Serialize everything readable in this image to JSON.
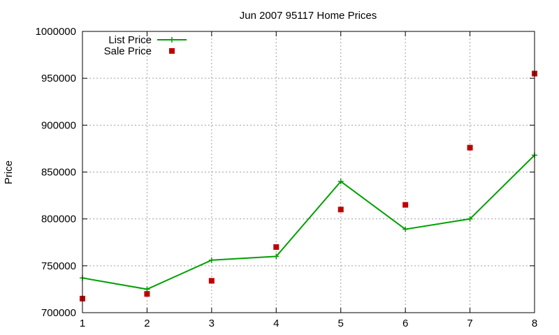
{
  "chart_data": {
    "type": "line",
    "title": "Jun 2007 95117 Home Prices",
    "xlabel": "",
    "ylabel": "Price",
    "xlim": [
      1,
      8
    ],
    "ylim": [
      700000,
      1000000
    ],
    "x_ticks": [
      "1",
      "2",
      "3",
      "4",
      "5",
      "6",
      "7",
      "8"
    ],
    "y_ticks": [
      "700000",
      "750000",
      "800000",
      "850000",
      "900000",
      "950000",
      "1000000"
    ],
    "grid": true,
    "legend_position": "top-left",
    "x": [
      1,
      2,
      3,
      4,
      5,
      6,
      7,
      8
    ],
    "series": [
      {
        "name": "List Price",
        "style": "line-with-plus-markers",
        "color": "#00a000",
        "values": [
          737000,
          725000,
          756000,
          760000,
          840000,
          789000,
          800000,
          868000
        ]
      },
      {
        "name": "Sale Price",
        "style": "square-points",
        "color": "#c00000",
        "values": [
          715000,
          720000,
          734000,
          770000,
          810000,
          815000,
          876000,
          955000
        ]
      }
    ]
  }
}
